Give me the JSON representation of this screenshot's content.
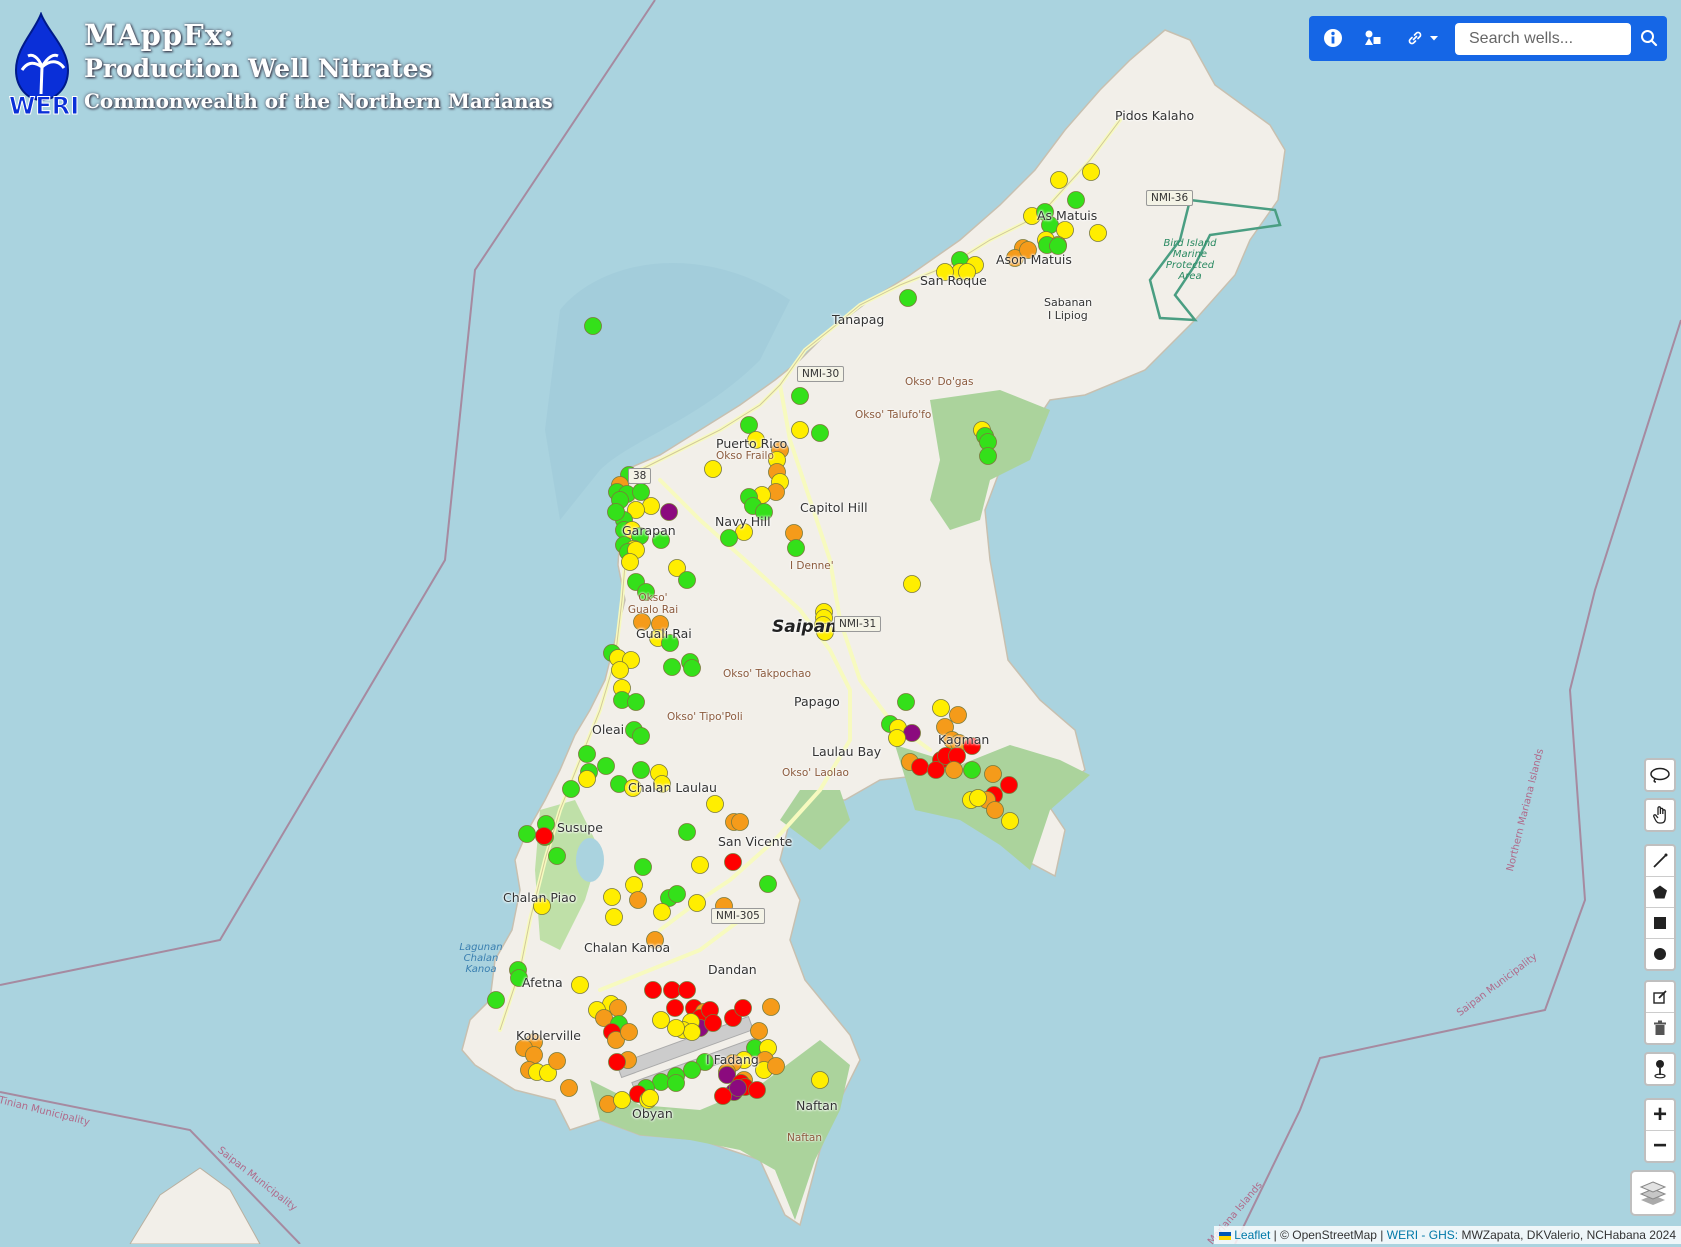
{
  "app": {
    "logo_text": "WERI",
    "title_line1": "MAppFx:",
    "title_line2": "Production Well Nitrates",
    "title_line3": "Commonwealth of the Northern Marianas"
  },
  "toolbar": {
    "info_icon": "info-icon",
    "legend_icon": "shapes-icon",
    "link_icon": "link-icon",
    "search_placeholder": "Search wells...",
    "search_icon": "search-icon"
  },
  "map": {
    "island_label": "Saipan",
    "places": [
      {
        "name": "Pidos Kalaho"
      },
      {
        "name": "As Matuis"
      },
      {
        "name": "Ason Matuis"
      },
      {
        "name": "San Roque"
      },
      {
        "name": "Tanapag"
      },
      {
        "name": "Sabanan"
      },
      {
        "name": "I Lipiog"
      },
      {
        "name": "Puerto Rico"
      },
      {
        "name": "Capitol Hill"
      },
      {
        "name": "Navy Hill"
      },
      {
        "name": "Garapan"
      },
      {
        "name": "Papago"
      },
      {
        "name": "Oleai"
      },
      {
        "name": "Laulau Bay"
      },
      {
        "name": "Kagman"
      },
      {
        "name": "Chalan Laulau"
      },
      {
        "name": "Susupe"
      },
      {
        "name": "San Vicente"
      },
      {
        "name": "Chalan Piao"
      },
      {
        "name": "Chalan Kanoa"
      },
      {
        "name": "Dandan"
      },
      {
        "name": "Afetna"
      },
      {
        "name": "Koblerville"
      },
      {
        "name": "I Fadang"
      },
      {
        "name": "Naftan"
      },
      {
        "name": "Obyan"
      },
      {
        "name": "Guali Rai"
      }
    ],
    "peaks": [
      "Okso' Do'gas",
      "Okso' Talufo'fo",
      "Okso Frailo",
      "I Denne'",
      "Okso' Gualo Rai",
      "Okso' Takpochao",
      "Okso' Tipo'Poli",
      "Okso' Laolao",
      "Naftan"
    ],
    "roads": [
      "NMI-36",
      "NMI-30",
      "38",
      "NMI-31",
      "NMI-305"
    ],
    "sea_labels": [
      "Northern Mariana Islands",
      "Saipan Municipality",
      "Tinian Municipality",
      "Saipan Municipality",
      "Mariana Islands"
    ],
    "mpa_label": "Bird Island Marine Protected Area",
    "lagoon_label": "Lagunan Chalan Kanoa",
    "colors": {
      "water": "#aad3df",
      "land": "#f2efe9",
      "green": "#abd39c",
      "forest": "#8fc07c",
      "road": "#f7fabf",
      "well_green": "#34e01a",
      "well_yellow": "#ffee00",
      "well_orange": "#f59b1a",
      "well_red": "#ff0000",
      "well_purple": "#8b0a7e"
    }
  },
  "controls": {
    "lasso_icon": "lasso-icon",
    "pan_icon": "hand-icon",
    "polyline_icon": "polyline-icon",
    "polygon_icon": "polygon-icon",
    "rectangle_icon": "rectangle-icon",
    "circle_icon": "circle-icon",
    "edit_icon": "edit-icon",
    "delete_icon": "trash-icon",
    "marker_icon": "marker-icon",
    "zoom_in": "+",
    "zoom_out": "−",
    "layers_icon": "layers-icon"
  },
  "attribution": {
    "leaflet": "Leaflet",
    "osm": "© OpenStreetMap",
    "weri": "WERI - GHS:",
    "authors": "MWZapata, DKValerio, NCHabana 2024"
  }
}
